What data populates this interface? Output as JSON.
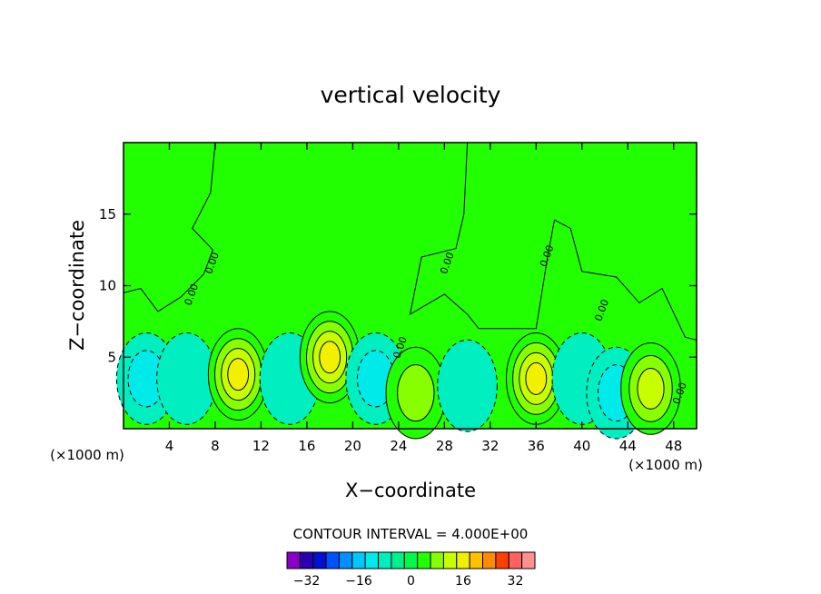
{
  "chart_data": {
    "type": "contour",
    "title": "vertical velocity",
    "xlabel": "X−coordinate",
    "ylabel": "Z−coordinate",
    "x_unit_left": "(×1000 m)",
    "x_unit_right": "(×1000 m)",
    "xlim": [
      0,
      50
    ],
    "ylim": [
      0,
      20
    ],
    "x_ticks": [
      4,
      8,
      12,
      16,
      20,
      24,
      28,
      32,
      36,
      40,
      44,
      48
    ],
    "y_ticks": [
      5,
      10,
      15
    ],
    "x_tick_labels": [
      "4",
      "8",
      "12",
      "16",
      "20",
      "24",
      "28",
      "32",
      "36",
      "40",
      "44",
      "48"
    ],
    "y_tick_labels": [
      "5",
      "10",
      "15"
    ],
    "contour_interval_text": "CONTOUR INTERVAL = 4.000E+00",
    "contour_interval": 4,
    "background_color": "#22ff00",
    "colorbar": {
      "levels": [
        -36,
        -32,
        -28,
        -24,
        -20,
        -16,
        -12,
        -8,
        -4,
        0,
        4,
        8,
        12,
        16,
        20,
        24,
        28,
        32,
        36
      ],
      "colors": [
        "#8a00c8",
        "#2a00b0",
        "#0010d0",
        "#0050ff",
        "#0090ff",
        "#00c8ff",
        "#00eaea",
        "#00eec0",
        "#00f090",
        "#00f848",
        "#22ff00",
        "#88ff00",
        "#c8ff00",
        "#f0f000",
        "#ffc000",
        "#ff8c00",
        "#ff4000",
        "#ff6060",
        "#ff9090"
      ],
      "tick_labels": [
        "−32",
        "−16",
        "0",
        "16",
        "32"
      ],
      "tick_values": [
        -32,
        -16,
        0,
        16,
        32
      ]
    },
    "features": [
      {
        "x": 2.0,
        "z": 3.5,
        "value": -8,
        "kind": "downdraft"
      },
      {
        "x": 5.5,
        "z": 3.5,
        "value": -6,
        "kind": "downdraft"
      },
      {
        "x": 10.0,
        "z": 3.8,
        "value": 16,
        "kind": "updraft"
      },
      {
        "x": 14.5,
        "z": 3.5,
        "value": -4,
        "kind": "downdraft"
      },
      {
        "x": 18.0,
        "z": 5.0,
        "value": 16,
        "kind": "updraft"
      },
      {
        "x": 22.0,
        "z": 3.5,
        "value": -8,
        "kind": "downdraft"
      },
      {
        "x": 25.5,
        "z": 2.5,
        "value": 10,
        "kind": "updraft"
      },
      {
        "x": 30.0,
        "z": 3.0,
        "value": -4,
        "kind": "downdraft"
      },
      {
        "x": 36.0,
        "z": 3.5,
        "value": 16,
        "kind": "updraft"
      },
      {
        "x": 40.0,
        "z": 3.5,
        "value": -4,
        "kind": "downdraft"
      },
      {
        "x": 43.0,
        "z": 2.5,
        "value": -8,
        "kind": "downdraft"
      },
      {
        "x": 46.0,
        "z": 2.8,
        "value": 12,
        "kind": "updraft"
      }
    ],
    "contour_labels": [
      {
        "text": "0.00",
        "x": 8.0,
        "z": 11.5
      },
      {
        "text": "0.00",
        "x": 6.2,
        "z": 9.3
      },
      {
        "text": "0.00",
        "x": 24.4,
        "z": 5.6
      },
      {
        "text": "0.00",
        "x": 28.5,
        "z": 11.5
      },
      {
        "text": "0.00",
        "x": 37.2,
        "z": 12.0
      },
      {
        "text": "0.00",
        "x": 42.0,
        "z": 8.2
      },
      {
        "text": "0.00",
        "x": 48.8,
        "z": 2.4
      }
    ]
  }
}
